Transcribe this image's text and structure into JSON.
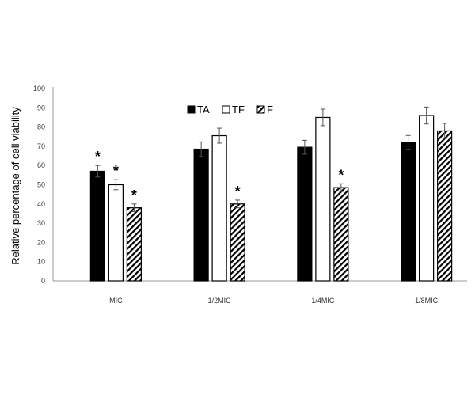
{
  "chart_data": {
    "type": "bar",
    "title": "",
    "xlabel": "",
    "ylabel": "Relative percentage of cell viability",
    "ylim": [
      0,
      100
    ],
    "yticks": [
      0,
      10,
      20,
      30,
      40,
      50,
      60,
      70,
      80,
      90,
      100
    ],
    "categories": [
      "MIC",
      "1/2MIC",
      "1/4MIC",
      "1/8MIC"
    ],
    "legend_position": "top-center",
    "series": [
      {
        "name": "TA",
        "fill": "#000000",
        "values": [
          57,
          68.5,
          69.5,
          72
        ],
        "errors": [
          3,
          3.8,
          3.6,
          3.6
        ],
        "significant": [
          true,
          false,
          false,
          false
        ]
      },
      {
        "name": "TF",
        "fill": "#ffffff",
        "values": [
          50,
          75.5,
          85,
          86
        ],
        "errors": [
          2.6,
          3.9,
          4.3,
          4.4
        ],
        "significant": [
          true,
          false,
          false,
          false
        ]
      },
      {
        "name": "F",
        "fill": "hatched",
        "values": [
          38,
          40,
          48.5,
          78
        ],
        "errors": [
          2,
          2,
          2,
          3.9
        ],
        "significant": [
          true,
          true,
          true,
          false
        ]
      }
    ],
    "significance_marker": "*"
  }
}
